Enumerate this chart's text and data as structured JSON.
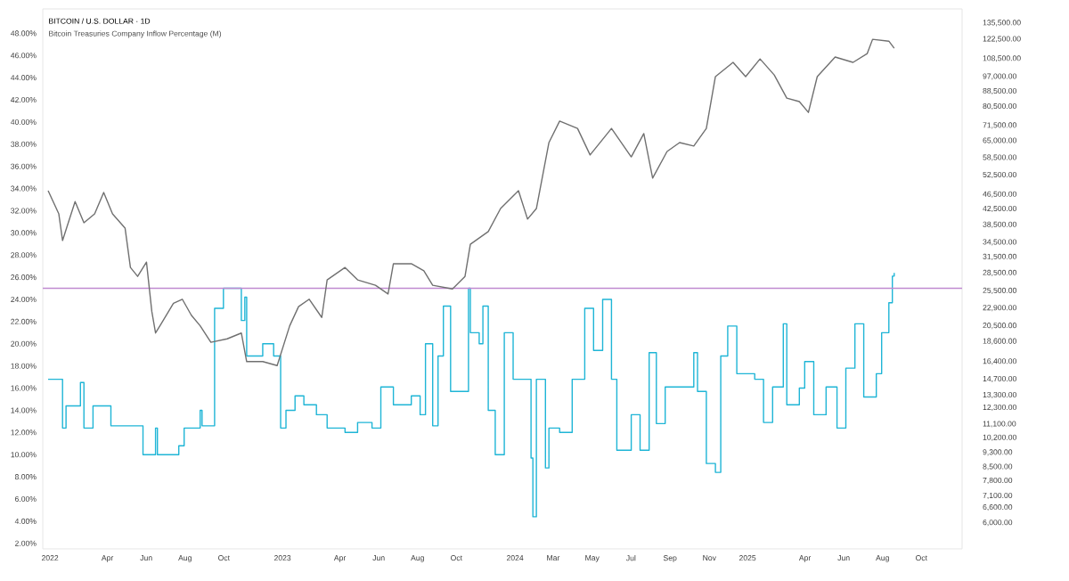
{
  "chart_data": {
    "type": "step",
    "title": "BITCOIN / U.S. DOLLAR · 1D",
    "subtitle": "Bitcoin Treasuries Company Inflow Percentage (M)",
    "xlim": [
      2021.969,
      2025.923
    ],
    "xticks": [
      {
        "value": 2022.0,
        "label": "2022"
      },
      {
        "value": 2022.247,
        "label": "Apr"
      },
      {
        "value": 2022.414,
        "label": "Jun"
      },
      {
        "value": 2022.581,
        "label": "Aug"
      },
      {
        "value": 2022.748,
        "label": "Oct"
      },
      {
        "value": 2023.0,
        "label": "2023"
      },
      {
        "value": 2023.247,
        "label": "Apr"
      },
      {
        "value": 2023.414,
        "label": "Jun"
      },
      {
        "value": 2023.581,
        "label": "Aug"
      },
      {
        "value": 2023.748,
        "label": "Oct"
      },
      {
        "value": 2024.0,
        "label": "2024"
      },
      {
        "value": 2024.164,
        "label": "Mar"
      },
      {
        "value": 2024.332,
        "label": "May"
      },
      {
        "value": 2024.499,
        "label": "Jul"
      },
      {
        "value": 2024.667,
        "label": "Sep"
      },
      {
        "value": 2024.836,
        "label": "Nov"
      },
      {
        "value": 2025.0,
        "label": "2025"
      },
      {
        "value": 2025.247,
        "label": "Apr"
      },
      {
        "value": 2025.414,
        "label": "Jun"
      },
      {
        "value": 2025.581,
        "label": "Aug"
      },
      {
        "value": 2025.748,
        "label": "Oct"
      }
    ],
    "ylim": [
      1.5,
      50.2
    ],
    "yticks": [
      {
        "value": 2,
        "label": "2.00%"
      },
      {
        "value": 4,
        "label": "4.00%"
      },
      {
        "value": 6,
        "label": "6.00%"
      },
      {
        "value": 8,
        "label": "8.00%"
      },
      {
        "value": 10,
        "label": "10.00%"
      },
      {
        "value": 12,
        "label": "12.00%"
      },
      {
        "value": 14,
        "label": "14.00%"
      },
      {
        "value": 16,
        "label": "16.00%"
      },
      {
        "value": 18,
        "label": "18.00%"
      },
      {
        "value": 20,
        "label": "20.00%"
      },
      {
        "value": 22,
        "label": "22.00%"
      },
      {
        "value": 24,
        "label": "24.00%"
      },
      {
        "value": 26,
        "label": "26.00%"
      },
      {
        "value": 28,
        "label": "28.00%"
      },
      {
        "value": 30,
        "label": "30.00%"
      },
      {
        "value": 32,
        "label": "32.00%"
      },
      {
        "value": 34,
        "label": "34.00%"
      },
      {
        "value": 36,
        "label": "36.00%"
      },
      {
        "value": 38,
        "label": "38.00%"
      },
      {
        "value": 40,
        "label": "40.00%"
      },
      {
        "value": 42,
        "label": "42.00%"
      },
      {
        "value": 44,
        "label": "44.00%"
      },
      {
        "value": 46,
        "label": "46.00%"
      },
      {
        "value": 48,
        "label": "48.00%"
      }
    ],
    "y2lim": [
      5100,
      148000
    ],
    "y2ticks": [
      {
        "value": 6000,
        "label": "6,000.00"
      },
      {
        "value": 6600,
        "label": "6,600.00"
      },
      {
        "value": 7100,
        "label": "7,100.00"
      },
      {
        "value": 7800,
        "label": "7,800.00"
      },
      {
        "value": 8500,
        "label": "8,500.00"
      },
      {
        "value": 9300,
        "label": "9,300.00"
      },
      {
        "value": 10200,
        "label": "10,200.00"
      },
      {
        "value": 11100,
        "label": "11,100.00"
      },
      {
        "value": 12300,
        "label": "12,300.00"
      },
      {
        "value": 13300,
        "label": "13,300.00"
      },
      {
        "value": 14700,
        "label": "14,700.00"
      },
      {
        "value": 16400,
        "label": "16,400.00"
      },
      {
        "value": 18600,
        "label": "18,600.00"
      },
      {
        "value": 20500,
        "label": "20,500.00"
      },
      {
        "value": 22900,
        "label": "22,900.00"
      },
      {
        "value": 25500,
        "label": "25,500.00"
      },
      {
        "value": 28500,
        "label": "28,500.00"
      },
      {
        "value": 31500,
        "label": "31,500.00"
      },
      {
        "value": 34500,
        "label": "34,500.00"
      },
      {
        "value": 38500,
        "label": "38,500.00"
      },
      {
        "value": 42500,
        "label": "42,500.00"
      },
      {
        "value": 46500,
        "label": "46,500.00"
      },
      {
        "value": 52500,
        "label": "52,500.00"
      },
      {
        "value": 58500,
        "label": "58,500.00"
      },
      {
        "value": 65000,
        "label": "65,000.00"
      },
      {
        "value": 71500,
        "label": "71,500.00"
      },
      {
        "value": 80500,
        "label": "80,500.00"
      },
      {
        "value": 88500,
        "label": "88,500.00"
      },
      {
        "value": 97000,
        "label": "97,000.00"
      },
      {
        "value": 108500,
        "label": "108,500.00"
      },
      {
        "value": 122500,
        "label": "122,500.00"
      },
      {
        "value": 135500,
        "label": "135,500.00"
      }
    ],
    "log": "y2",
    "ref_lines": [
      {
        "axis": "y",
        "value": 25.0,
        "color": "#c08ad0"
      }
    ],
    "series": [
      {
        "type": "line",
        "axis": "y2",
        "color": "#707070",
        "x": [
          2021.992,
          2022.038,
          2022.054,
          2022.108,
          2022.146,
          2022.192,
          2022.231,
          2022.269,
          2022.323,
          2022.346,
          2022.377,
          2022.415,
          2022.438,
          2022.454,
          2022.477,
          2022.531,
          2022.569,
          2022.608,
          2022.646,
          2022.692,
          2022.762,
          2022.823,
          2022.846,
          2022.915,
          2022.977,
          2023.031,
          2023.069,
          2023.115,
          2023.169,
          2023.192,
          2023.269,
          2023.323,
          2023.4,
          2023.454,
          2023.477,
          2023.554,
          2023.608,
          2023.646,
          2023.731,
          2023.785,
          2023.808,
          2023.885,
          2023.938,
          2024.015,
          2024.054,
          2024.092,
          2024.146,
          2024.192,
          2024.269,
          2024.323,
          2024.415,
          2024.5,
          2024.554,
          2024.592,
          2024.654,
          2024.708,
          2024.769,
          2024.823,
          2024.862,
          2024.938,
          2024.992,
          2025.054,
          2025.115,
          2025.169,
          2025.223,
          2025.262,
          2025.3,
          2025.377,
          2025.454,
          2025.515,
          2025.538,
          2025.608,
          2025.631
        ],
        "values": [
          47600,
          41200,
          34900,
          44500,
          39000,
          41200,
          47100,
          41200,
          37700,
          29500,
          27900,
          30500,
          22400,
          19600,
          20700,
          23600,
          24200,
          21900,
          20500,
          18500,
          18900,
          19600,
          16400,
          16400,
          16000,
          20500,
          23100,
          24200,
          21600,
          27300,
          29500,
          27300,
          26400,
          25000,
          30200,
          30200,
          28900,
          26400,
          25800,
          27900,
          34100,
          36900,
          42600,
          47600,
          39900,
          42600,
          64300,
          73500,
          70200,
          59500,
          70200,
          58800,
          68000,
          51500,
          60800,
          64300,
          62900,
          70200,
          97000,
          106000,
          97000,
          108300,
          98000,
          84800,
          83000,
          77600,
          97000,
          109600,
          106000,
          112000,
          122400,
          121000,
          115800
        ]
      },
      {
        "color": "#1fb5d6",
        "x": [
          2021.992,
          2022.038,
          2022.054,
          2022.069,
          2022.131,
          2022.146,
          2022.185,
          2022.246,
          2022.262,
          2022.377,
          2022.4,
          2022.454,
          2022.462,
          2022.554,
          2022.577,
          2022.646,
          2022.654,
          2022.692,
          2022.708,
          2022.746,
          2022.8,
          2022.823,
          2022.838,
          2022.846,
          2022.915,
          2022.962,
          2022.992,
          2023.015,
          2023.054,
          2023.092,
          2023.146,
          2023.192,
          2023.269,
          2023.323,
          2023.385,
          2023.423,
          2023.477,
          2023.554,
          2023.592,
          2023.615,
          2023.646,
          2023.669,
          2023.692,
          2023.723,
          2023.785,
          2023.8,
          2023.808,
          2023.846,
          2023.862,
          2023.885,
          2023.915,
          2023.954,
          2023.992,
          2024.038,
          2024.069,
          2024.077,
          2024.092,
          2024.131,
          2024.146,
          2024.192,
          2024.246,
          2024.3,
          2024.338,
          2024.377,
          2024.415,
          2024.438,
          2024.5,
          2024.538,
          2024.577,
          2024.608,
          2024.646,
          2024.769,
          2024.785,
          2024.823,
          2024.862,
          2024.885,
          2024.915,
          2024.954,
          2025.031,
          2025.069,
          2025.108,
          2025.154,
          2025.169,
          2025.223,
          2025.246,
          2025.285,
          2025.338,
          2025.385,
          2025.423,
          2025.462,
          2025.5,
          2025.554,
          2025.577,
          2025.608,
          2025.623,
          2025.631
        ],
        "values": [
          16.8,
          16.8,
          12.4,
          14.4,
          16.5,
          12.4,
          14.4,
          14.4,
          12.6,
          12.6,
          10.0,
          12.4,
          10.0,
          10.8,
          12.4,
          14.0,
          12.6,
          12.6,
          23.2,
          25.0,
          25.0,
          22.1,
          24.2,
          18.9,
          20.0,
          18.9,
          12.4,
          14.0,
          15.3,
          14.5,
          13.6,
          12.4,
          12.0,
          12.9,
          12.4,
          16.1,
          14.5,
          15.3,
          13.6,
          20.0,
          12.6,
          18.9,
          23.4,
          15.7,
          15.7,
          25.0,
          21.0,
          20.0,
          23.4,
          14.0,
          10.0,
          21.0,
          16.8,
          16.8,
          9.7,
          4.4,
          16.8,
          8.8,
          12.4,
          12.0,
          16.8,
          23.2,
          19.4,
          24.0,
          16.8,
          10.4,
          13.6,
          10.4,
          19.2,
          12.8,
          16.1,
          19.2,
          15.7,
          9.2,
          8.4,
          18.9,
          21.6,
          17.3,
          16.8,
          12.9,
          16.1,
          21.8,
          14.5,
          16.0,
          18.4,
          13.6,
          16.1,
          12.4,
          17.8,
          21.8,
          15.2,
          17.3,
          21.0,
          23.7,
          26.1,
          26.4
        ]
      }
    ]
  }
}
